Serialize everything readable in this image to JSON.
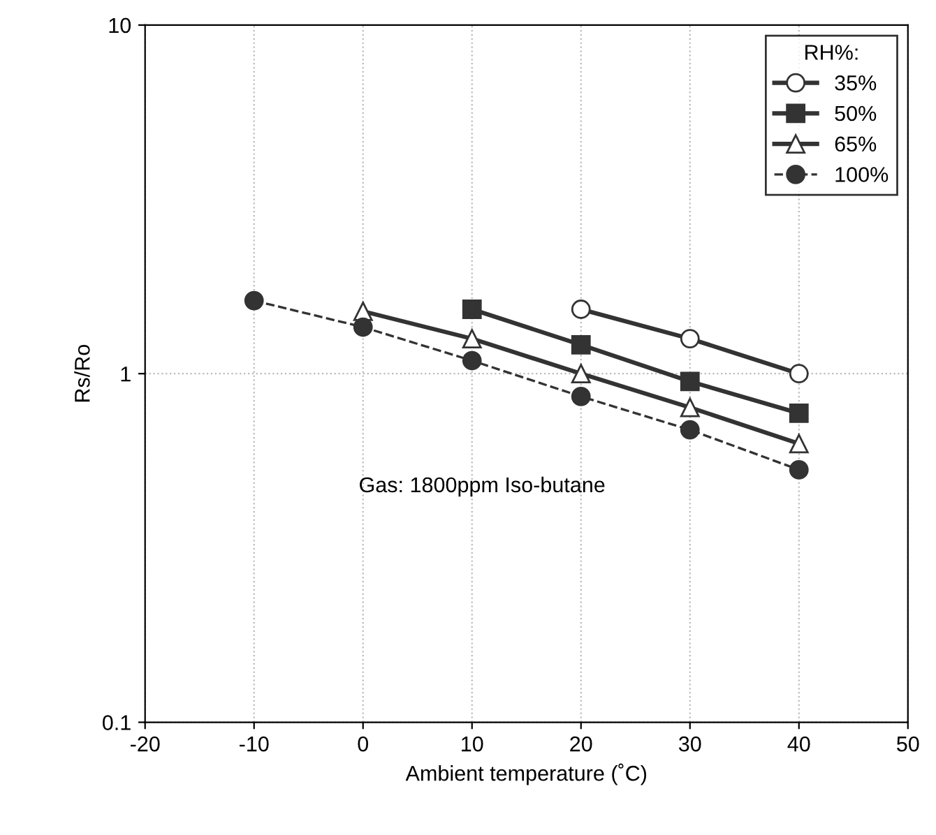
{
  "chart_data": {
    "type": "line",
    "xlabel": "Ambient temperature (˚C)",
    "ylabel": "Rs/Ro",
    "legend_title": "RH%:",
    "legend": "top right",
    "log": "y",
    "grid": true,
    "xlim": [
      -20,
      50
    ],
    "xticks": [
      -20,
      -10,
      0,
      10,
      20,
      30,
      40,
      50
    ],
    "ylim": [
      0.1,
      10
    ],
    "yticks": [
      0.1,
      1,
      10
    ],
    "annotations": [
      "Gas: 1800ppm Iso-butane"
    ],
    "series": [
      {
        "name": "35%",
        "color": "#333333",
        "marker": "circle",
        "line_style": "solid",
        "x": [
          20,
          30,
          40
        ],
        "values": [
          1.53,
          1.26,
          1.0
        ]
      },
      {
        "name": "50%",
        "color": "#333333",
        "marker": "square",
        "line_style": "solid",
        "x": [
          10,
          20,
          30,
          40
        ],
        "values": [
          1.53,
          1.21,
          0.95,
          0.77
        ]
      },
      {
        "name": "65%",
        "color": "#333333",
        "marker": "triangle",
        "line_style": "solid",
        "x": [
          0,
          10,
          20,
          30,
          40
        ],
        "values": [
          1.51,
          1.26,
          1.0,
          0.8,
          0.63
        ]
      },
      {
        "name": "100%",
        "color": "#333333",
        "marker": "circle",
        "line_style": "dashed",
        "x": [
          -10,
          0,
          10,
          20,
          30,
          40
        ],
        "values": [
          1.62,
          1.36,
          1.09,
          0.86,
          0.69,
          0.53
        ]
      }
    ]
  }
}
